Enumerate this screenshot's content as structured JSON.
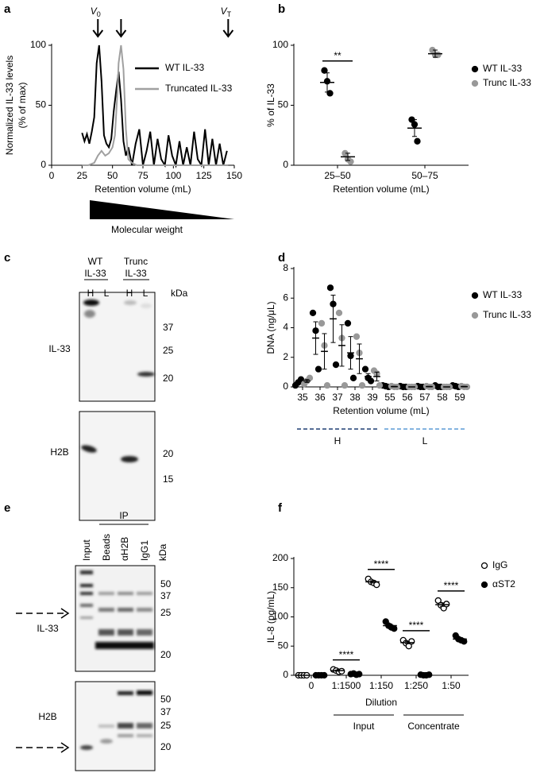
{
  "chart_data": [
    {
      "panel": "a",
      "type": "line",
      "xlabel": "Retention volume (mL)",
      "ylabel": [
        "Normalized IL-33 levels",
        "(% of max)"
      ],
      "xlim": [
        0,
        150
      ],
      "xticks": [
        0,
        25,
        50,
        75,
        100,
        125,
        150
      ],
      "ylim": [
        0,
        100
      ],
      "yticks": [
        0,
        50,
        100
      ],
      "series": [
        {
          "name": "WT IL-33",
          "color": "#000000",
          "x": [
            25,
            27,
            29,
            31,
            33,
            35,
            37,
            39,
            41,
            43,
            45,
            47,
            49,
            51,
            53,
            55,
            57,
            59,
            61,
            63,
            66,
            69,
            72,
            75,
            78,
            81,
            84,
            87,
            90,
            93,
            96,
            99,
            102,
            105,
            108,
            111,
            114,
            117,
            120,
            123,
            126,
            129,
            132,
            135,
            138,
            141,
            144
          ],
          "values": [
            27,
            20,
            26,
            18,
            28,
            40,
            85,
            100,
            70,
            25,
            18,
            15,
            22,
            45,
            62,
            78,
            55,
            20,
            8,
            15,
            0,
            18,
            30,
            0,
            12,
            28,
            0,
            22,
            5,
            0,
            25,
            8,
            0,
            20,
            0,
            15,
            0,
            28,
            5,
            0,
            30,
            0,
            22,
            0,
            18,
            0,
            12
          ]
        },
        {
          "name": "Truncated IL-33",
          "color": "#a0a0a0",
          "x": [
            25,
            30,
            35,
            38,
            41,
            44,
            47,
            50,
            52,
            54,
            55,
            57,
            59,
            61,
            63,
            66,
            70,
            80,
            100,
            120,
            145
          ],
          "values": [
            0,
            0,
            2,
            8,
            12,
            8,
            10,
            15,
            25,
            60,
            85,
            100,
            80,
            30,
            5,
            2,
            0,
            0,
            0,
            0,
            0
          ]
        }
      ],
      "annotations": [
        {
          "label": "V",
          "sub": "0",
          "x": 38
        },
        {
          "x": 57
        },
        {
          "label": "V",
          "sub": "T",
          "x": 145
        }
      ],
      "note": "Molecular weight"
    },
    {
      "panel": "b",
      "type": "dot",
      "xlabel": "Retention volume (mL)",
      "ylabel": "% of IL-33",
      "categories": [
        "25–50",
        "50–75"
      ],
      "ylim": [
        0,
        100
      ],
      "yticks": [
        0,
        50,
        100
      ],
      "series": [
        {
          "name": "WT IL-33",
          "color": "#000000",
          "marker": "filled",
          "values": [
            [
              79,
              70,
              60
            ],
            [
              38,
              34,
              20
            ]
          ],
          "means": [
            69,
            31
          ],
          "sems": [
            8,
            7
          ]
        },
        {
          "name": "Trunc IL-33",
          "color": "#999999",
          "marker": "filled",
          "values": [
            [
              10,
              5,
              3
            ],
            [
              96,
              92,
              92
            ]
          ],
          "means": [
            7,
            93
          ],
          "sems": [
            3,
            3
          ]
        }
      ],
      "significance": [
        "**",
        null
      ]
    },
    {
      "panel": "d",
      "type": "dot",
      "xlabel": "Retention volume (mL)",
      "ylabel": "DNA (ng/μL)",
      "categories": [
        35,
        36,
        37,
        38,
        39,
        55,
        56,
        57,
        58,
        59
      ],
      "ylim": [
        0,
        8
      ],
      "yticks": [
        0,
        2,
        4,
        6,
        8
      ],
      "series": [
        {
          "name": "WT IL-33",
          "color": "#000000",
          "marker": "filled",
          "values": [
            [
              0.1,
              0.3,
              0.5
            ],
            [
              5.0,
              3.8,
              1.2
            ],
            [
              6.7,
              5.6,
              1.5
            ],
            [
              4.3,
              2.1,
              0.6
            ],
            [
              1.2,
              0.6,
              0.4
            ],
            [
              0.1,
              0.05,
              0
            ],
            [
              0.05,
              0,
              0
            ],
            [
              0.05,
              0,
              0
            ],
            [
              0.1,
              0,
              0
            ],
            [
              0.1,
              0.05,
              0
            ]
          ],
          "means": [
            0.3,
            3.3,
            4.6,
            2.3,
            0.7,
            0.05,
            0.02,
            0.02,
            0.03,
            0.05
          ],
          "sems": [
            0.1,
            1.1,
            1.6,
            1.1,
            0.2,
            0.03,
            0.02,
            0.02,
            0.03,
            0.03
          ]
        },
        {
          "name": "Trunc IL-33",
          "color": "#999999",
          "marker": "filled",
          "values": [
            [
              0.2,
              0.4,
              0.6
            ],
            [
              4.3,
              2.8,
              0.1
            ],
            [
              5.0,
              3.3,
              0.1
            ],
            [
              3.4,
              2.3,
              0.1
            ],
            [
              1.1,
              0.9,
              0.1
            ],
            [
              0.05,
              0,
              0
            ],
            [
              0,
              0,
              0
            ],
            [
              0.05,
              0,
              0
            ],
            [
              0,
              0,
              0
            ],
            [
              0.05,
              0,
              0
            ]
          ],
          "means": [
            0.4,
            2.4,
            2.8,
            1.9,
            0.7,
            0.02,
            0,
            0.02,
            0,
            0.02
          ],
          "sems": [
            0.1,
            1.2,
            1.4,
            1.0,
            0.3,
            0.02,
            0,
            0.02,
            0,
            0.02
          ]
        }
      ],
      "fractions": [
        {
          "label": "H",
          "from": 35,
          "to": 39,
          "color": "#1f3f73"
        },
        {
          "label": "L",
          "from": 55,
          "to": 59,
          "color": "#5b9bd5"
        }
      ]
    },
    {
      "panel": "f",
      "type": "dot",
      "xlabel": "Dilution",
      "ylabel": "IL-8 (pg/mL)",
      "categories": [
        "0",
        "1:1500",
        "1:150",
        "1:250",
        "1:50"
      ],
      "ylim": [
        0,
        200
      ],
      "yticks": [
        0,
        50,
        100,
        150,
        200
      ],
      "series": [
        {
          "name": "IgG",
          "color": "#000000",
          "marker": "open",
          "values": [
            [
              0,
              0,
              0,
              0
            ],
            [
              10,
              8,
              6,
              7
            ],
            [
              165,
              160,
              158,
              155
            ],
            [
              60,
              55,
              50,
              58
            ],
            [
              128,
              120,
              115,
              122
            ]
          ],
          "means": [
            0,
            8,
            160,
            56,
            121
          ],
          "sems": [
            0,
            1,
            2,
            2,
            3
          ]
        },
        {
          "name": "αST2",
          "color": "#000000",
          "marker": "filled",
          "values": [
            [
              0,
              0,
              0,
              0
            ],
            [
              2,
              3,
              1,
              2
            ],
            [
              92,
              85,
              82,
              80
            ],
            [
              1,
              0,
              0,
              1
            ],
            [
              68,
              62,
              60,
              58
            ]
          ],
          "means": [
            0,
            2,
            85,
            0,
            62
          ],
          "sems": [
            0,
            0.5,
            3,
            0.3,
            2
          ]
        }
      ],
      "significance": [
        null,
        "****",
        "****",
        "****",
        "****"
      ],
      "groups": [
        {
          "label": "Input",
          "from": "1:1500",
          "to": "1:150"
        },
        {
          "label": "Concentrate",
          "from": "1:250",
          "to": "1:50"
        }
      ]
    }
  ],
  "blot_c": {
    "panel": "c",
    "groups": [
      [
        "WT",
        "IL-33"
      ],
      [
        "Trunc",
        "IL-33"
      ]
    ],
    "lanes": [
      "H",
      "L",
      "H",
      "L"
    ],
    "unit": "kDa",
    "blots": [
      {
        "label": "IL-33",
        "markers": [
          37,
          25,
          20
        ]
      },
      {
        "label": "H2B",
        "markers": [
          20,
          15
        ]
      }
    ]
  },
  "blot_e": {
    "panel": "e",
    "ip": "IP",
    "lanes": [
      "Input",
      "Beads",
      "αH2B",
      "IgG1"
    ],
    "unit": "kDa",
    "blots": [
      {
        "label": "IL-33",
        "markers": [
          50,
          37,
          25,
          20
        ]
      },
      {
        "label": "H2B",
        "markers": [
          50,
          37,
          25,
          20
        ]
      }
    ]
  }
}
